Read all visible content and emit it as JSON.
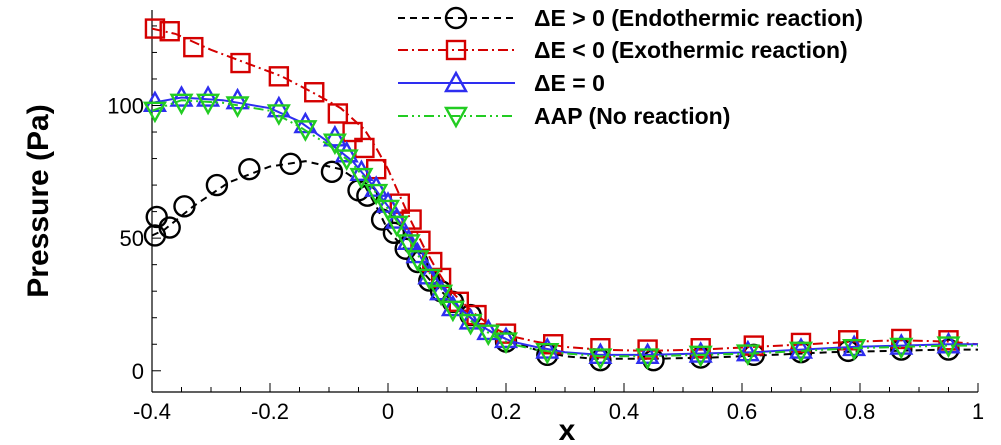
{
  "chart_data": {
    "type": "line",
    "title": "",
    "xlabel": "x",
    "ylabel": "Pressure (Pa)",
    "xlim": [
      -0.4,
      1.0
    ],
    "ylim": [
      -8,
      136
    ],
    "xticks": [
      -0.4,
      -0.2,
      0,
      0.2,
      0.4,
      0.6,
      0.8,
      1
    ],
    "xtick_labels": [
      "-0.4",
      "-0.2",
      "0",
      "0.2",
      "0.4",
      "0.6",
      "0.8",
      "1"
    ],
    "yticks": [
      0,
      50,
      100
    ],
    "ytick_labels": [
      "0",
      "50",
      "100"
    ],
    "grid": false,
    "legend_position": "top-right",
    "series": [
      {
        "name": "ΔE > 0 (Endothermic reaction)",
        "color": "#000000",
        "dash": "dashed",
        "marker": "circle",
        "x": [
          -0.4,
          -0.38,
          -0.33,
          -0.27,
          -0.2,
          -0.14,
          -0.08,
          -0.04,
          -0.02,
          0,
          0.02,
          0.04,
          0.06,
          0.08,
          0.1,
          0.12,
          0.15,
          0.18,
          0.21,
          0.25,
          0.3,
          0.35,
          0.45,
          0.55,
          0.65,
          0.75,
          0.85,
          0.95,
          1.0
        ],
        "y": [
          51,
          53,
          62,
          71,
          77,
          79,
          76,
          70,
          62,
          53,
          48,
          43,
          37,
          32,
          28,
          24,
          18,
          14,
          11,
          8,
          5.5,
          4.5,
          4.5,
          5,
          6,
          7,
          7.5,
          8,
          8
        ],
        "marker_x": [
          -0.395,
          -0.392,
          -0.37,
          -0.345,
          -0.29,
          -0.235,
          -0.165,
          -0.095,
          -0.05,
          -0.035,
          -0.01,
          0.01,
          0.03,
          0.05,
          0.07,
          0.09,
          0.11,
          0.14,
          0.2,
          0.27,
          0.36,
          0.45,
          0.53,
          0.62,
          0.7,
          0.78,
          0.87,
          0.95
        ],
        "marker_y": [
          51,
          58,
          54,
          62,
          70,
          76,
          78,
          75,
          68,
          66,
          57,
          52,
          46,
          41,
          34,
          30,
          26,
          21,
          11,
          6,
          4,
          4,
          5,
          6,
          7,
          7.5,
          8,
          8
        ]
      },
      {
        "name": "ΔE < 0 (Exothermic reaction)",
        "color": "#d40000",
        "dash": "dashdot",
        "marker": "square",
        "x": [
          -0.4,
          -0.36,
          -0.3,
          -0.24,
          -0.18,
          -0.12,
          -0.08,
          -0.04,
          -0.02,
          0,
          0.02,
          0.04,
          0.06,
          0.08,
          0.1,
          0.12,
          0.15,
          0.18,
          0.21,
          0.25,
          0.3,
          0.36,
          0.44,
          0.53,
          0.62,
          0.71,
          0.79,
          0.87,
          0.95,
          1.0
        ],
        "y": [
          129,
          127,
          121,
          116,
          111,
          104,
          99,
          91,
          84,
          76,
          66,
          56,
          47,
          39,
          32,
          27,
          21,
          16,
          13,
          11,
          9,
          8,
          7.5,
          8,
          9,
          10,
          11,
          11.5,
          11,
          10
        ],
        "marker_x": [
          -0.395,
          -0.37,
          -0.33,
          -0.25,
          -0.185,
          -0.125,
          -0.085,
          -0.06,
          -0.04,
          -0.02,
          0.02,
          0.04,
          0.055,
          0.075,
          0.09,
          0.12,
          0.15,
          0.2,
          0.28,
          0.36,
          0.44,
          0.53,
          0.62,
          0.7,
          0.78,
          0.87,
          0.95
        ],
        "marker_y": [
          129,
          128,
          122,
          116,
          111,
          105,
          97,
          90,
          84,
          76,
          63,
          57,
          49,
          41,
          35,
          26,
          21,
          14,
          10,
          8.5,
          8,
          8.5,
          9.5,
          10.5,
          11.5,
          12,
          11.5
        ]
      },
      {
        "name": "ΔE = 0",
        "color": "#2e2ef0",
        "dash": "solid",
        "marker": "triangle-up",
        "x": [
          -0.4,
          -0.35,
          -0.28,
          -0.2,
          -0.15,
          -0.1,
          -0.06,
          -0.03,
          0,
          0.02,
          0.04,
          0.06,
          0.08,
          0.1,
          0.12,
          0.15,
          0.18,
          0.21,
          0.25,
          0.3,
          0.36,
          0.44,
          0.53,
          0.62,
          0.7,
          0.79,
          0.87,
          0.95,
          1.0
        ],
        "y": [
          101,
          103,
          102,
          99,
          94,
          86,
          79,
          71,
          62,
          56,
          49,
          41,
          35,
          29,
          24,
          18,
          14,
          11,
          9,
          7,
          6,
          6,
          6.5,
          7,
          8,
          9,
          9.5,
          10,
          10
        ],
        "marker_x": [
          -0.395,
          -0.35,
          -0.305,
          -0.255,
          -0.185,
          -0.14,
          -0.09,
          -0.07,
          -0.045,
          -0.02,
          0,
          0.015,
          0.035,
          0.05,
          0.07,
          0.09,
          0.11,
          0.14,
          0.17,
          0.2,
          0.27,
          0.36,
          0.44,
          0.53,
          0.61,
          0.7,
          0.79,
          0.87,
          0.95
        ],
        "marker_y": [
          101,
          103,
          103,
          102,
          99,
          93,
          88,
          82,
          75,
          69,
          63,
          57,
          49,
          44,
          36,
          30,
          24,
          19,
          15,
          12,
          8,
          6,
          6,
          6.5,
          7,
          8,
          9,
          9.5,
          10
        ]
      },
      {
        "name": "AAP (No reaction)",
        "color": "#22cc22",
        "dash": "dashdotdot",
        "marker": "triangle-down",
        "x": [
          -0.4,
          -0.35,
          -0.28,
          -0.2,
          -0.15,
          -0.1,
          -0.06,
          -0.03,
          0,
          0.02,
          0.04,
          0.06,
          0.08,
          0.1,
          0.12,
          0.15,
          0.18,
          0.21,
          0.25,
          0.3,
          0.36,
          0.44,
          0.53,
          0.62,
          0.7,
          0.79,
          0.87,
          0.95,
          1.0
        ],
        "y": [
          98,
          102,
          101,
          98,
          92,
          85,
          78,
          70,
          61,
          55,
          48,
          40,
          34,
          28,
          23,
          17,
          13,
          10,
          8,
          6.5,
          5.5,
          5.5,
          6,
          6.5,
          7.5,
          8.5,
          9,
          9.5,
          9.5
        ],
        "marker_x": [
          -0.395,
          -0.35,
          -0.305,
          -0.255,
          -0.185,
          -0.14,
          -0.09,
          -0.07,
          -0.045,
          -0.02,
          0,
          0.015,
          0.035,
          0.05,
          0.07,
          0.09,
          0.11,
          0.14,
          0.17,
          0.2,
          0.27,
          0.36,
          0.44,
          0.53,
          0.61,
          0.7,
          0.79,
          0.87,
          0.95
        ],
        "marker_y": [
          98,
          101,
          101,
          100,
          97,
          91,
          86,
          80,
          73,
          67,
          61,
          55,
          48,
          42,
          35,
          29,
          23,
          18,
          14,
          11,
          7,
          5,
          5,
          6,
          6.5,
          7.5,
          8.5,
          9,
          9.5
        ]
      }
    ]
  }
}
